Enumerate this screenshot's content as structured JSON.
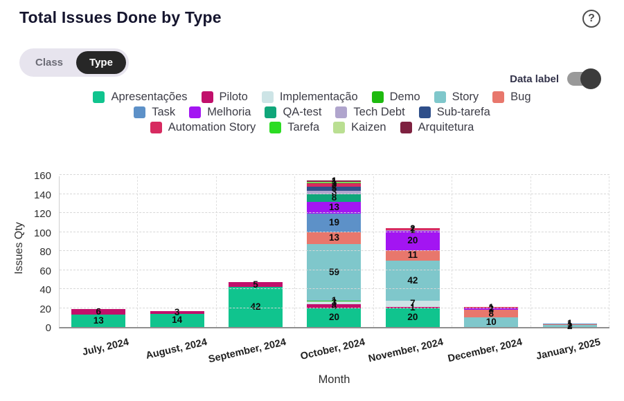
{
  "header": {
    "title": "Total Issues Done by Type",
    "help_icon": "?"
  },
  "view_toggle": {
    "options": [
      "Class",
      "Type"
    ],
    "selected": "Type"
  },
  "data_label_toggle": {
    "label": "Data label",
    "state": "on"
  },
  "legend": {
    "rows": [
      [
        "Apresentações",
        "Piloto",
        "Implementação",
        "Demo",
        "Story",
        "Bug"
      ],
      [
        "Task",
        "Melhoria",
        "QA-test",
        "Tech Debt",
        "Sub-tarefa"
      ],
      [
        "Automation Story",
        "Tarefa",
        "Kaizen",
        "Arquitetura"
      ]
    ]
  },
  "chart_data": {
    "type": "bar",
    "stacked": true,
    "title": "Total Issues Done by Type",
    "xlabel": "Month",
    "ylabel": "Issues Qty",
    "ylim": [
      0,
      160
    ],
    "yticks": [
      0,
      20,
      40,
      60,
      80,
      100,
      120,
      140,
      160
    ],
    "grid": "dashed horizontal and vertical",
    "data_labels": true,
    "categories": [
      "July, 2024",
      "August, 2024",
      "September, 2024",
      "October, 2024",
      "November, 2024",
      "December, 2024",
      "January, 2025"
    ],
    "series": [
      {
        "name": "Apresentações",
        "color": "#10c48e",
        "values": [
          13,
          14,
          42,
          20,
          20,
          0,
          0
        ]
      },
      {
        "name": "Piloto",
        "color": "#c10f6b",
        "values": [
          6,
          3,
          5,
          4,
          1,
          0,
          0
        ]
      },
      {
        "name": "Implementação",
        "color": "#cde4e6",
        "values": [
          0,
          0,
          0,
          3,
          7,
          0,
          0
        ]
      },
      {
        "name": "Demo",
        "color": "#1eba0f",
        "values": [
          0,
          0,
          0,
          1,
          0,
          0,
          0
        ]
      },
      {
        "name": "Story",
        "color": "#7fc7cb",
        "values": [
          0,
          0,
          0,
          59,
          42,
          10,
          2
        ]
      },
      {
        "name": "Bug",
        "color": "#e8776c",
        "values": [
          0,
          0,
          0,
          13,
          11,
          8,
          1
        ]
      },
      {
        "name": "Task",
        "color": "#5d91c8",
        "values": [
          0,
          0,
          0,
          19,
          0,
          0,
          1
        ]
      },
      {
        "name": "Melhoria",
        "color": "#a315f2",
        "values": [
          0,
          0,
          0,
          13,
          20,
          2,
          0
        ]
      },
      {
        "name": "QA-test",
        "color": "#10a67a",
        "values": [
          0,
          0,
          0,
          8,
          0,
          0,
          0
        ]
      },
      {
        "name": "Tech Debt",
        "color": "#b0a5cd",
        "values": [
          0,
          0,
          0,
          3,
          1,
          0,
          0
        ]
      },
      {
        "name": "Sub-tarefa",
        "color": "#2f4f8a",
        "values": [
          0,
          0,
          0,
          5,
          0,
          0,
          0
        ]
      },
      {
        "name": "Automation Story",
        "color": "#d72a60",
        "values": [
          0,
          0,
          0,
          3,
          2,
          1,
          0
        ]
      },
      {
        "name": "Tarefa",
        "color": "#2cdc23",
        "values": [
          0,
          0,
          0,
          1,
          0,
          0,
          0
        ]
      },
      {
        "name": "Kaizen",
        "color": "#badf92",
        "values": [
          0,
          0,
          0,
          1,
          0,
          0,
          0
        ]
      },
      {
        "name": "Arquitetura",
        "color": "#7e2140",
        "values": [
          0,
          0,
          0,
          1,
          0,
          0,
          0
        ]
      }
    ]
  }
}
